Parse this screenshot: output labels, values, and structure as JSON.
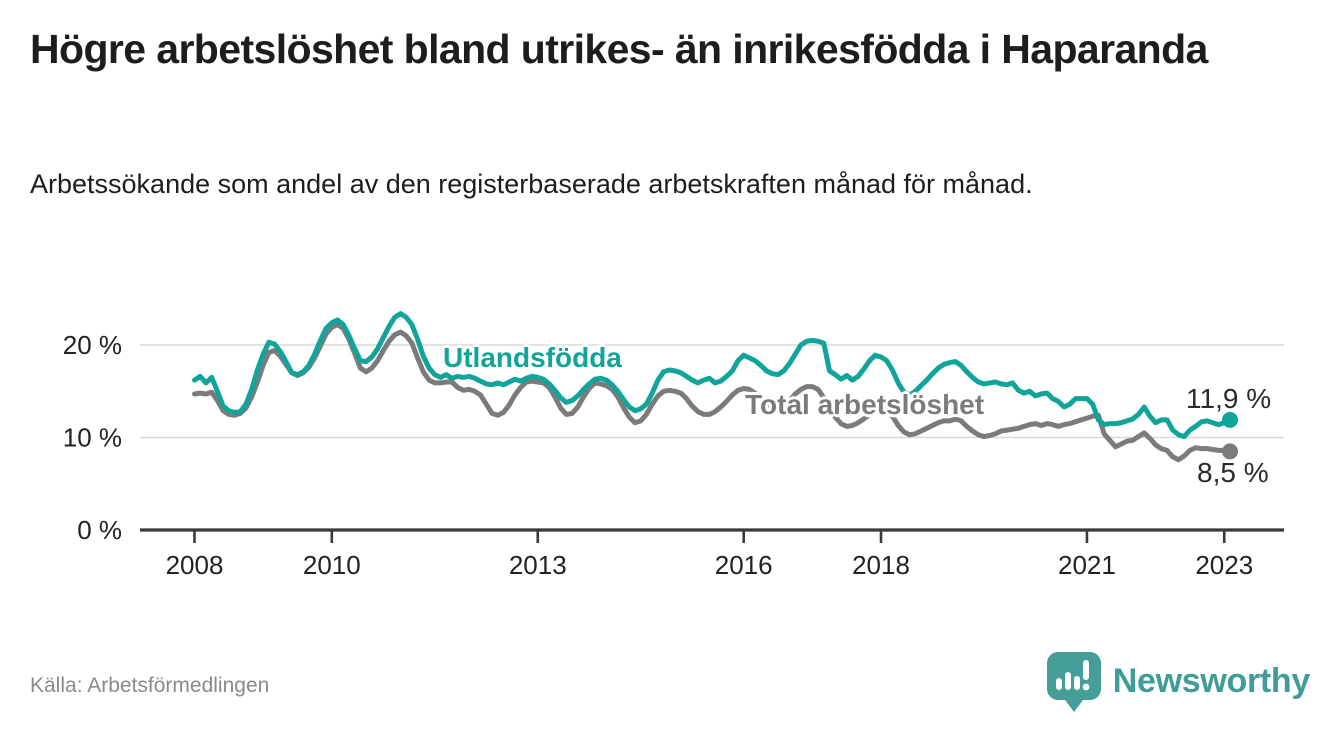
{
  "title": "Högre arbetslöshet bland utrikes- än inrikesfödda i Haparanda",
  "subtitle": "Arbetssökande som andel av den registerbaserade arbetskraften månad för månad.",
  "source": "Källa: Arbetsförmedlingen",
  "brand": {
    "name": "Newsworthy",
    "icon": "bar-chart-speech-bubble",
    "color": "#3f9d98"
  },
  "colors": {
    "teal_line": "#10a49b",
    "gray_line": "#7b7b7b",
    "grid": "#d8d8d8",
    "axis": "#3a3a3a",
    "text": "#1d1d1d",
    "tick_text": "#222222",
    "value_label": "#2b2b2b",
    "muted": "#8a8a8a"
  },
  "chart_data": {
    "type": "line",
    "unit": "%",
    "title": "Högre arbetslöshet bland utrikes- än inrikesfödda i Haparanda",
    "xlabel": "",
    "ylabel": "Arbetssökande som andel av den registerbaserade arbetskraften",
    "grid": true,
    "x_start_year": 2008,
    "x_step_months": 1,
    "x_end": "2023-02",
    "x_tick_years": [
      2008,
      2010,
      2013,
      2016,
      2018,
      2021,
      2023
    ],
    "y_ticks": [
      0,
      10,
      20
    ],
    "ylim": [
      0,
      24.5
    ],
    "legend_position": "inline-labels",
    "series": [
      {
        "name": "Utlandsfödda",
        "color": "#10a49b",
        "end_label": "11,9 %",
        "end_value": 11.9,
        "values": [
          16.2,
          16.6,
          15.9,
          16.5,
          15.0,
          13.4,
          12.9,
          12.7,
          12.8,
          13.6,
          15.2,
          17.3,
          19.0,
          20.3,
          20.1,
          19.3,
          18.2,
          17.0,
          16.8,
          17.1,
          17.8,
          19.0,
          20.5,
          21.8,
          22.4,
          22.7,
          22.2,
          21.0,
          19.6,
          18.3,
          18.2,
          18.7,
          19.6,
          20.8,
          22.0,
          23.0,
          23.4,
          23.0,
          22.2,
          20.6,
          18.8,
          17.5,
          16.8,
          16.5,
          16.8,
          16.4,
          16.6,
          16.5,
          16.6,
          16.4,
          16.1,
          15.8,
          15.7,
          15.9,
          15.7,
          16.0,
          16.3,
          16.1,
          16.4,
          16.6,
          16.5,
          16.3,
          15.8,
          15.1,
          14.3,
          13.8,
          14.0,
          14.5,
          15.2,
          15.8,
          16.3,
          16.4,
          16.2,
          15.7,
          15.0,
          14.1,
          13.3,
          12.9,
          13.1,
          13.6,
          14.8,
          16.2,
          17.1,
          17.3,
          17.2,
          17.0,
          16.6,
          16.2,
          15.9,
          16.2,
          16.4,
          15.9,
          16.1,
          16.6,
          17.2,
          18.3,
          18.9,
          18.6,
          18.3,
          17.8,
          17.2,
          16.9,
          16.8,
          17.2,
          18.0,
          19.0,
          20.0,
          20.4,
          20.5,
          20.4,
          20.2,
          17.2,
          16.8,
          16.3,
          16.7,
          16.2,
          16.6,
          17.4,
          18.3,
          18.9,
          18.7,
          18.3,
          17.3,
          15.9,
          14.9,
          14.6,
          15.0,
          15.6,
          16.2,
          16.9,
          17.5,
          17.9,
          18.1,
          18.2,
          17.8,
          17.1,
          16.5,
          16.0,
          15.8,
          15.9,
          16.0,
          15.8,
          15.7,
          15.9,
          15.1,
          14.8,
          15.0,
          14.5,
          14.7,
          14.8,
          14.2,
          13.9,
          13.3,
          13.6,
          14.2,
          14.2,
          14.2,
          13.6,
          11.9,
          11.4,
          11.5,
          11.5,
          11.6,
          11.8,
          12.0,
          12.5,
          13.3,
          12.3,
          11.6,
          11.9,
          11.9,
          10.8,
          10.3,
          10.1,
          10.8,
          11.2,
          11.7,
          11.8,
          11.6,
          11.4,
          11.6,
          11.9
        ]
      },
      {
        "name": "Total arbetslöshet",
        "color": "#7b7b7b",
        "end_label": "8,5 %",
        "end_value": 8.5,
        "values": [
          14.7,
          14.8,
          14.7,
          14.9,
          14.0,
          12.9,
          12.5,
          12.4,
          12.6,
          13.2,
          14.4,
          16.0,
          17.8,
          19.2,
          19.4,
          18.8,
          17.9,
          17.0,
          16.7,
          17.0,
          17.6,
          18.6,
          19.9,
          21.2,
          21.9,
          22.2,
          21.8,
          20.6,
          19.1,
          17.5,
          17.1,
          17.5,
          18.3,
          19.4,
          20.4,
          21.1,
          21.4,
          21.0,
          20.2,
          18.6,
          17.1,
          16.2,
          15.9,
          15.9,
          16.0,
          16.0,
          15.4,
          15.1,
          15.2,
          15.0,
          14.6,
          13.6,
          12.6,
          12.4,
          12.7,
          13.5,
          14.6,
          15.4,
          16.0,
          16.1,
          16.0,
          15.9,
          15.4,
          14.4,
          13.2,
          12.5,
          12.6,
          13.3,
          14.4,
          15.3,
          15.9,
          15.8,
          15.6,
          15.2,
          14.4,
          13.2,
          12.2,
          11.6,
          11.8,
          12.5,
          13.6,
          14.5,
          15.0,
          15.1,
          15.0,
          14.8,
          14.2,
          13.4,
          12.8,
          12.5,
          12.5,
          12.8,
          13.3,
          13.9,
          14.6,
          15.1,
          15.3,
          15.2,
          14.8,
          14.2,
          13.7,
          13.3,
          13.2,
          13.5,
          14.0,
          14.7,
          15.2,
          15.5,
          15.5,
          15.2,
          14.3,
          13.2,
          12.2,
          11.5,
          11.2,
          11.3,
          11.6,
          12.0,
          12.5,
          13.0,
          13.2,
          13.0,
          12.3,
          11.3,
          10.6,
          10.3,
          10.4,
          10.7,
          11.0,
          11.3,
          11.6,
          11.8,
          11.8,
          12.0,
          11.8,
          11.2,
          10.7,
          10.3,
          10.1,
          10.2,
          10.4,
          10.7,
          10.8,
          10.9,
          11.0,
          11.2,
          11.4,
          11.5,
          11.3,
          11.5,
          11.4,
          11.2,
          11.4,
          11.5,
          11.7,
          11.9,
          12.1,
          12.3,
          12.4,
          10.4,
          9.7,
          9.0,
          9.3,
          9.6,
          9.7,
          10.1,
          10.5,
          9.9,
          9.2,
          8.8,
          8.6,
          7.9,
          7.6,
          8.0,
          8.6,
          8.9,
          8.8,
          8.8,
          8.7,
          8.6,
          8.6,
          8.5
        ]
      }
    ]
  }
}
